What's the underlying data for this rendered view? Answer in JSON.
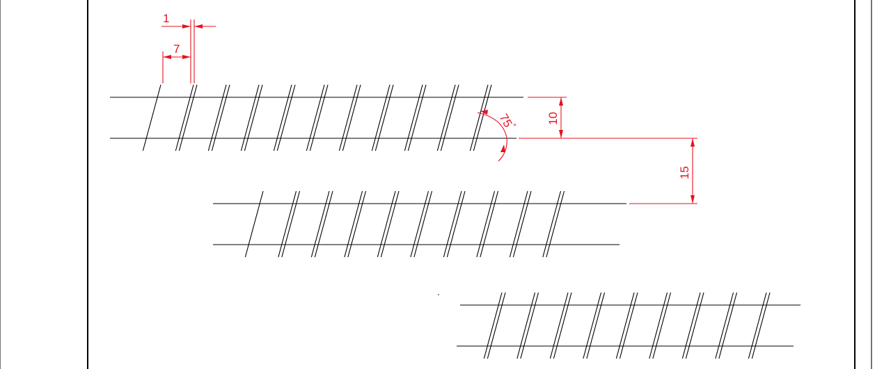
{
  "colors": {
    "geometry": "#000000",
    "dimension": "#e8101f",
    "background": "#ffffff"
  },
  "dimensions": {
    "gap": "1",
    "pitch": "7",
    "band_height": "10",
    "band_spacing": "15",
    "angle": "75",
    "angle_unit": "°"
  }
}
